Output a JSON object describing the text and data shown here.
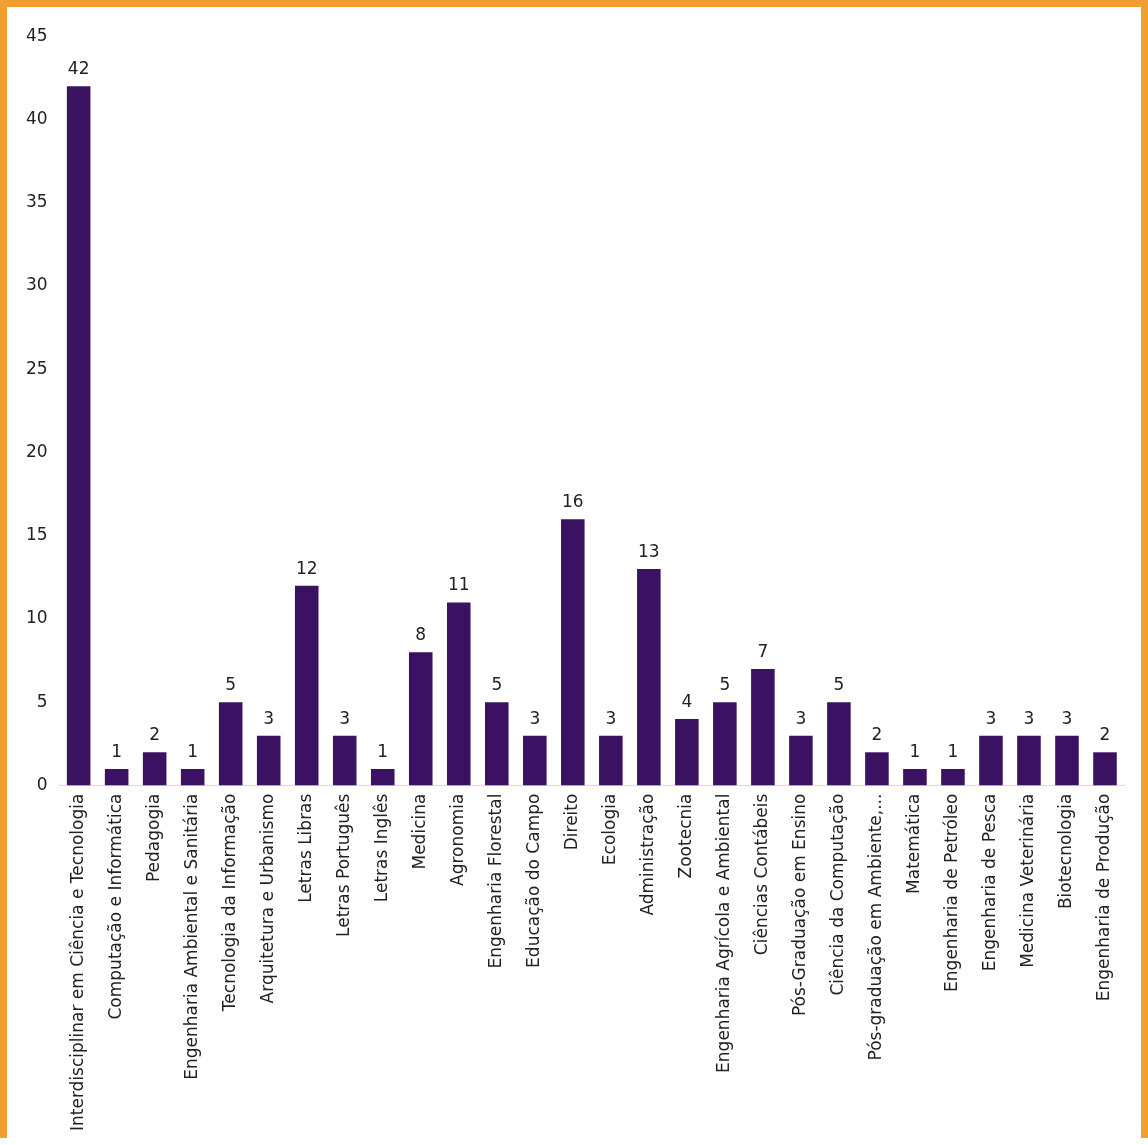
{
  "chart_data": {
    "type": "bar",
    "categories": [
      "Interdisciplinar em Ciência e Tecnologia",
      "Computação e Informática",
      "Pedagogia",
      "Engenharia Ambiental e Sanitária",
      "Tecnologia da Informação",
      "Arquitetura e Urbanismo",
      "Letras Libras",
      "Letras Português",
      "Letras Inglês",
      "Medicina",
      "Agronomia",
      "Engenharia Florestal",
      "Educação do Campo",
      "Direito",
      "Ecologia",
      "Administração",
      "Zootecnia",
      "Engenharia Agrícola e Ambiental",
      "Ciências Contábeis",
      "Pós-Graduação em Ensino",
      "Ciência da Computação",
      "Pós-graduação em Ambiente,...",
      "Matemática",
      "Engenharia de Petróleo",
      "Engenharia de Pesca",
      "Medicina Veterinária",
      "Biotecnologia",
      "Engenharia de Produção"
    ],
    "values": [
      42,
      1,
      2,
      1,
      5,
      3,
      12,
      3,
      1,
      8,
      11,
      5,
      3,
      16,
      3,
      13,
      4,
      5,
      7,
      3,
      5,
      2,
      1,
      1,
      3,
      3,
      3,
      2
    ],
    "color": "#3b1261",
    "ylim": [
      0,
      45
    ],
    "yticks": [
      0,
      5,
      10,
      15,
      20,
      25,
      30,
      35,
      40,
      45
    ],
    "grid": false,
    "legend": false,
    "data_labels": true
  }
}
